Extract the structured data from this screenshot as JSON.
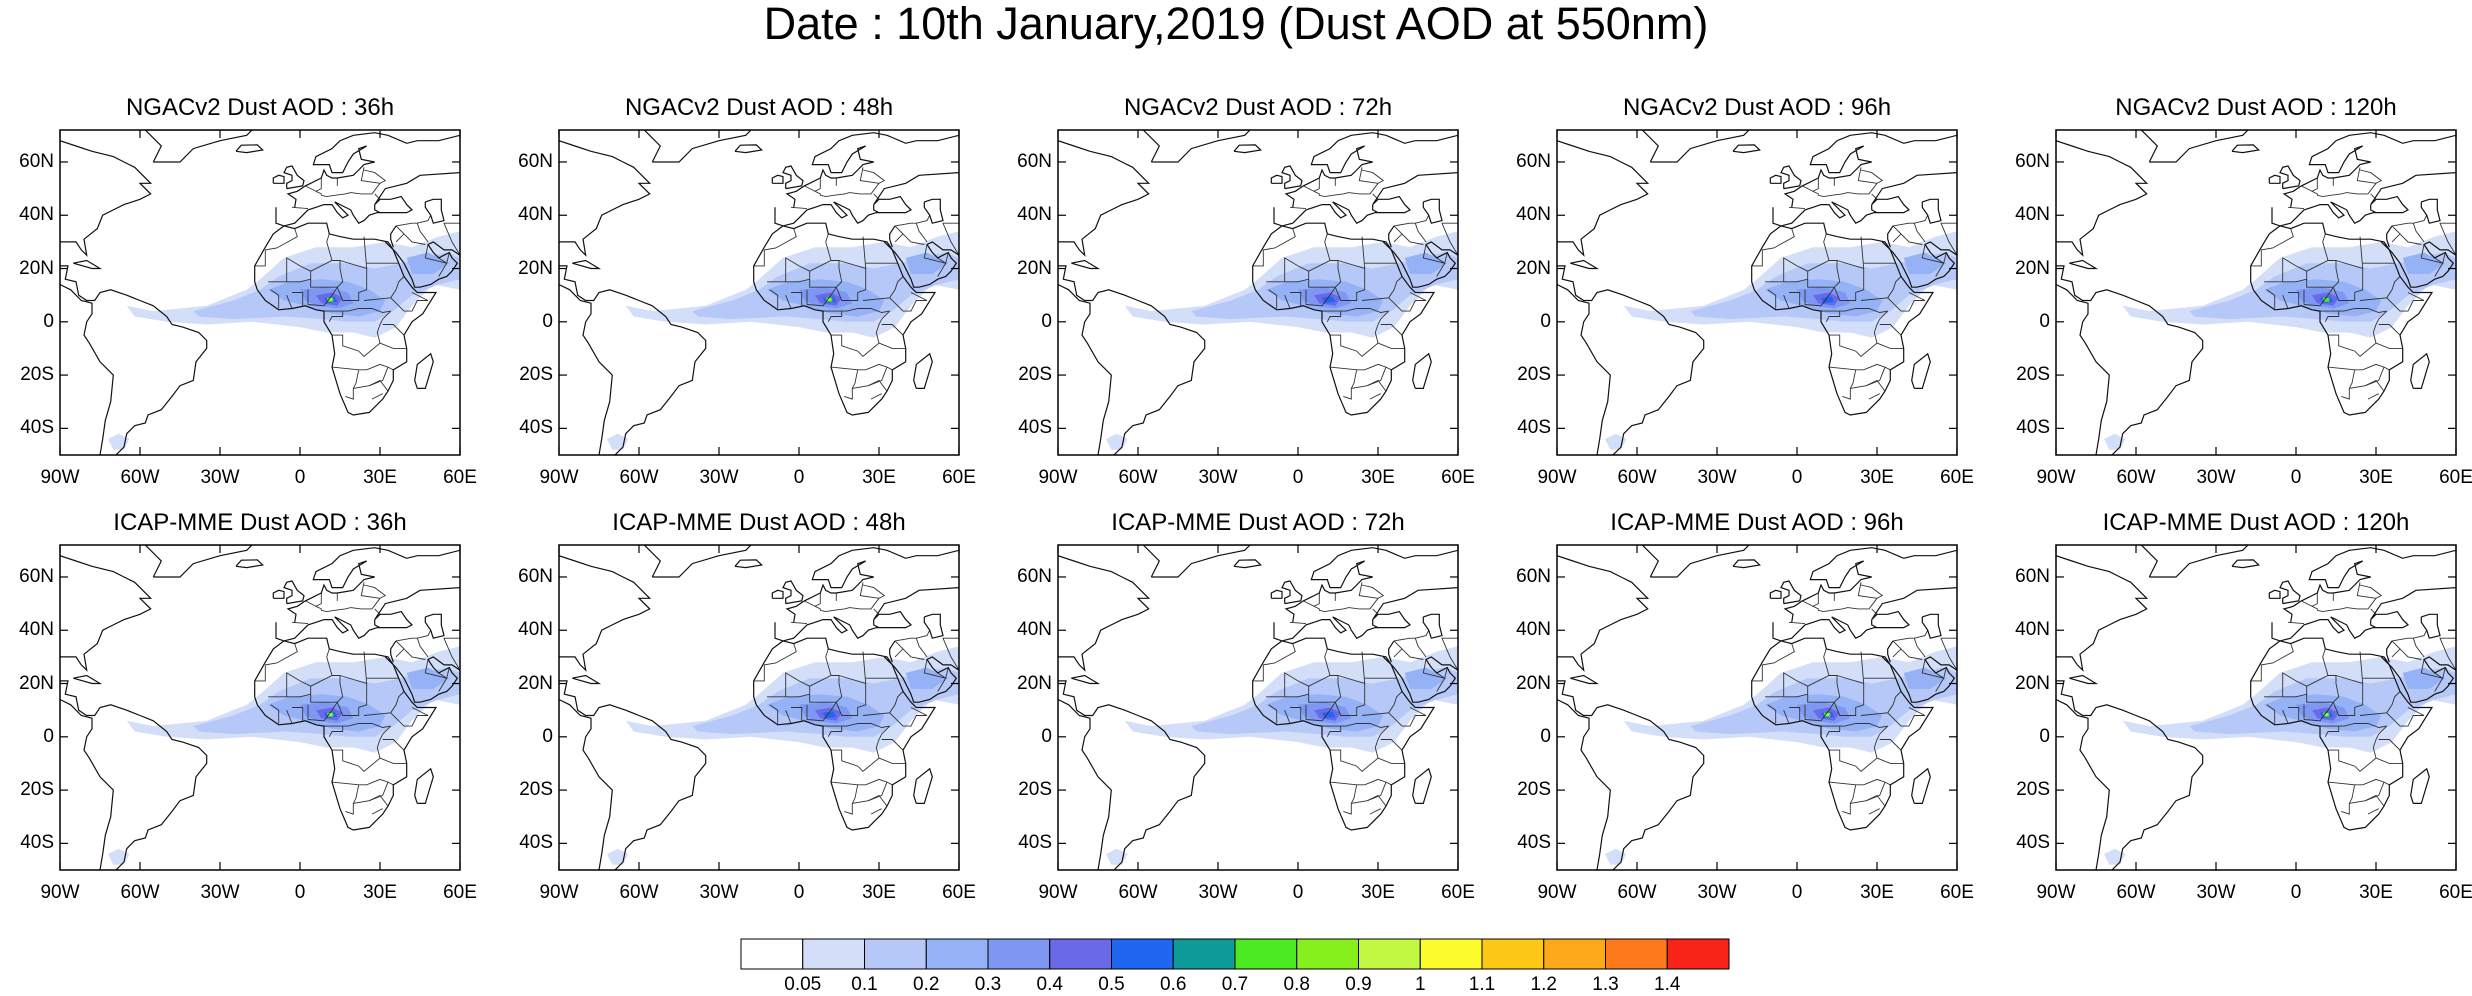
{
  "title": "Date : 10th January,2019 (Dust AOD at 550nm)",
  "panels": [
    {
      "title": "NGACv2 Dust AOD : 36h",
      "model": "NGACv2",
      "lead_hours": 36,
      "peak_level": 0.9
    },
    {
      "title": "NGACv2 Dust AOD : 48h",
      "model": "NGACv2",
      "lead_hours": 48,
      "peak_level": 0.9
    },
    {
      "title": "NGACv2 Dust AOD : 72h",
      "model": "NGACv2",
      "lead_hours": 72,
      "peak_level": 0.5
    },
    {
      "title": "NGACv2 Dust AOD : 96h",
      "model": "NGACv2",
      "lead_hours": 96,
      "peak_level": 0.5
    },
    {
      "title": "NGACv2 Dust AOD : 120h",
      "model": "NGACv2",
      "lead_hours": 120,
      "peak_level": 0.7
    },
    {
      "title": "ICAP-MME Dust AOD : 36h",
      "model": "ICAP-MME",
      "lead_hours": 36,
      "peak_level": 0.9
    },
    {
      "title": "ICAP-MME Dust AOD : 48h",
      "model": "ICAP-MME",
      "lead_hours": 48,
      "peak_level": 0.6
    },
    {
      "title": "ICAP-MME Dust AOD : 72h",
      "model": "ICAP-MME",
      "lead_hours": 72,
      "peak_level": 0.5
    },
    {
      "title": "ICAP-MME Dust AOD : 96h",
      "model": "ICAP-MME",
      "lead_hours": 96,
      "peak_level": 1.0
    },
    {
      "title": "ICAP-MME Dust AOD : 120h",
      "model": "ICAP-MME",
      "lead_hours": 120,
      "peak_level": 0.9
    }
  ],
  "lat_labels": [
    "60N",
    "40N",
    "20N",
    "0",
    "20S",
    "40S"
  ],
  "lon_labels": [
    "90W",
    "60W",
    "30W",
    "0",
    "30E",
    "60E"
  ],
  "colorbar": {
    "labels": [
      "0.05",
      "0.1",
      "0.2",
      "0.3",
      "0.4",
      "0.5",
      "0.6",
      "0.7",
      "0.8",
      "0.9",
      "1",
      "1.1",
      "1.2",
      "1.3",
      "1.4"
    ],
    "colors": [
      "#ffffff",
      "#d3def9",
      "#b6c8f7",
      "#95b2f6",
      "#7e97f3",
      "#6a6ae8",
      "#1f66f0",
      "#0f9a9a",
      "#4cea20",
      "#86f01c",
      "#c2f842",
      "#fdfd2d",
      "#fec916",
      "#fda818",
      "#fd7a1c",
      "#f82418"
    ]
  }
}
